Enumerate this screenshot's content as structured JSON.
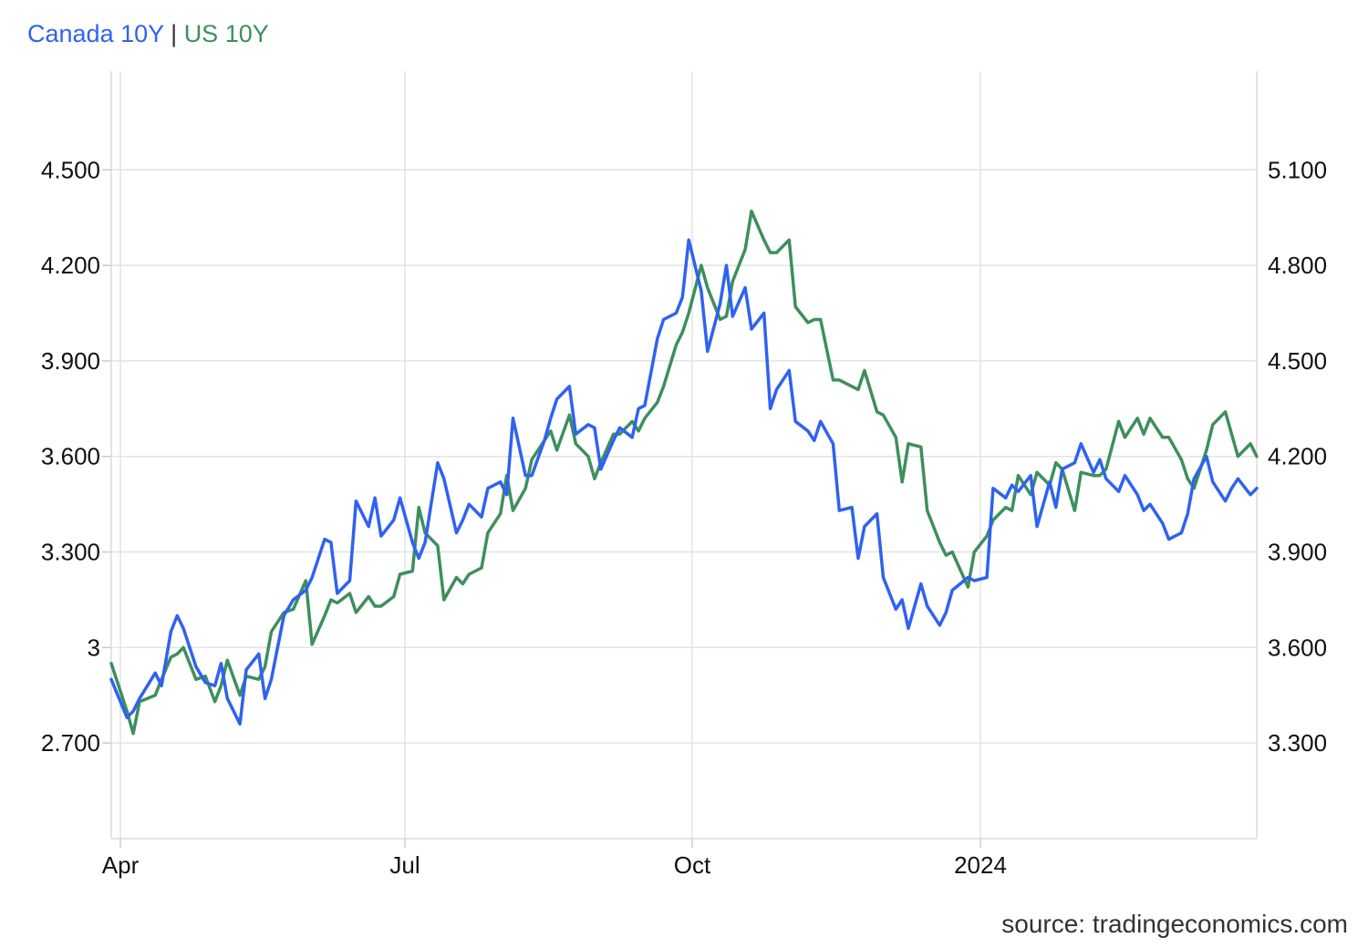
{
  "header": {
    "series1_label": "Canada 10Y",
    "separator": "|",
    "series2_label": "US 10Y"
  },
  "footer": {
    "source": "source: tradingeconomics.com"
  },
  "colors": {
    "canada": "#2f62f0",
    "us": "#3d8f5c",
    "grid": "#e3e3e3",
    "separator": "#333333"
  },
  "chart_data": {
    "type": "line",
    "x_tick_labels": [
      "Apr",
      "Jul",
      "Oct",
      "2024"
    ],
    "left_axis": {
      "ticks": [
        2.7,
        3.0,
        3.3,
        3.6,
        3.9,
        4.2,
        4.5
      ],
      "tick_labels": [
        "2.700",
        "3",
        "3.300",
        "3.600",
        "3.900",
        "4.200",
        "4.500"
      ],
      "range": [
        2.4,
        4.81
      ]
    },
    "right_axis": {
      "ticks": [
        3.3,
        3.6,
        3.9,
        4.2,
        4.5,
        4.8,
        5.1
      ],
      "tick_labels": [
        "3.300",
        "3.600",
        "3.900",
        "4.200",
        "4.500",
        "4.800",
        "5.100"
      ],
      "range": [
        3.0,
        5.41
      ]
    },
    "x_range": [
      "2023-03-29",
      "2024-03-28"
    ],
    "grid": true,
    "series": [
      {
        "name": "Canada 10Y",
        "axis": "left",
        "x": [
          "2023-03-29",
          "2023-04-03",
          "2023-04-05",
          "2023-04-07",
          "2023-04-12",
          "2023-04-14",
          "2023-04-17",
          "2023-04-19",
          "2023-04-21",
          "2023-04-25",
          "2023-04-28",
          "2023-05-01",
          "2023-05-03",
          "2023-05-05",
          "2023-05-09",
          "2023-05-11",
          "2023-05-15",
          "2023-05-17",
          "2023-05-19",
          "2023-05-23",
          "2023-05-26",
          "2023-05-30",
          "2023-06-01",
          "2023-06-05",
          "2023-06-07",
          "2023-06-09",
          "2023-06-13",
          "2023-06-15",
          "2023-06-19",
          "2023-06-21",
          "2023-06-23",
          "2023-06-27",
          "2023-06-29",
          "2023-07-03",
          "2023-07-05",
          "2023-07-07",
          "2023-07-11",
          "2023-07-13",
          "2023-07-17",
          "2023-07-19",
          "2023-07-21",
          "2023-07-25",
          "2023-07-27",
          "2023-07-31",
          "2023-08-02",
          "2023-08-04",
          "2023-08-08",
          "2023-08-10",
          "2023-08-14",
          "2023-08-16",
          "2023-08-18",
          "2023-08-22",
          "2023-08-24",
          "2023-08-28",
          "2023-08-30",
          "2023-09-01",
          "2023-09-05",
          "2023-09-07",
          "2023-09-11",
          "2023-09-13",
          "2023-09-15",
          "2023-09-19",
          "2023-09-21",
          "2023-09-25",
          "2023-09-27",
          "2023-09-29",
          "2023-10-03",
          "2023-10-05",
          "2023-10-09",
          "2023-10-11",
          "2023-10-13",
          "2023-10-17",
          "2023-10-19",
          "2023-10-23",
          "2023-10-25",
          "2023-10-27",
          "2023-10-31",
          "2023-11-02",
          "2023-11-06",
          "2023-11-08",
          "2023-11-10",
          "2023-11-14",
          "2023-11-16",
          "2023-11-20",
          "2023-11-22",
          "2023-11-24",
          "2023-11-28",
          "2023-11-30",
          "2023-12-04",
          "2023-12-06",
          "2023-12-08",
          "2023-12-12",
          "2023-12-14",
          "2023-12-18",
          "2023-12-20",
          "2023-12-22",
          "2023-12-27",
          "2023-12-29",
          "2024-01-02",
          "2024-01-04",
          "2024-01-08",
          "2024-01-10",
          "2024-01-12",
          "2024-01-16",
          "2024-01-18",
          "2024-01-22",
          "2024-01-24",
          "2024-01-26",
          "2024-01-30",
          "2024-02-01",
          "2024-02-05",
          "2024-02-07",
          "2024-02-09",
          "2024-02-13",
          "2024-02-15",
          "2024-02-19",
          "2024-02-21",
          "2024-02-23",
          "2024-02-27",
          "2024-02-29",
          "2024-03-04",
          "2024-03-06",
          "2024-03-08",
          "2024-03-12",
          "2024-03-14",
          "2024-03-18",
          "2024-03-20",
          "2024-03-22",
          "2024-03-26",
          "2024-03-28"
        ],
        "values": [
          2.9,
          2.78,
          2.8,
          2.84,
          2.92,
          2.88,
          3.05,
          3.1,
          3.06,
          2.94,
          2.89,
          2.88,
          2.95,
          2.84,
          2.76,
          2.93,
          2.98,
          2.84,
          2.9,
          3.1,
          3.15,
          3.18,
          3.22,
          3.34,
          3.33,
          3.17,
          3.21,
          3.46,
          3.38,
          3.47,
          3.35,
          3.4,
          3.47,
          3.33,
          3.28,
          3.33,
          3.58,
          3.53,
          3.36,
          3.4,
          3.45,
          3.41,
          3.5,
          3.52,
          3.48,
          3.72,
          3.54,
          3.54,
          3.65,
          3.72,
          3.78,
          3.82,
          3.67,
          3.7,
          3.69,
          3.56,
          3.65,
          3.69,
          3.66,
          3.75,
          3.76,
          3.97,
          4.03,
          4.05,
          4.1,
          4.28,
          4.12,
          3.93,
          4.08,
          4.2,
          4.04,
          4.13,
          4.0,
          4.05,
          3.75,
          3.81,
          3.87,
          3.71,
          3.68,
          3.65,
          3.71,
          3.64,
          3.43,
          3.44,
          3.28,
          3.38,
          3.42,
          3.22,
          3.12,
          3.15,
          3.06,
          3.2,
          3.13,
          3.07,
          3.11,
          3.18,
          3.22,
          3.21,
          3.22,
          3.5,
          3.47,
          3.51,
          3.49,
          3.54,
          3.38,
          3.52,
          3.44,
          3.56,
          3.58,
          3.64,
          3.55,
          3.59,
          3.53,
          3.49,
          3.54,
          3.48,
          3.43,
          3.45,
          3.39,
          3.34,
          3.36,
          3.42,
          3.53,
          3.6,
          3.52,
          3.46,
          3.5,
          3.53,
          3.48,
          3.5
        ]
      },
      {
        "name": "US 10Y",
        "axis": "right",
        "x": [
          "2023-03-29",
          "2023-04-03",
          "2023-04-05",
          "2023-04-07",
          "2023-04-12",
          "2023-04-14",
          "2023-04-17",
          "2023-04-19",
          "2023-04-21",
          "2023-04-25",
          "2023-04-28",
          "2023-05-01",
          "2023-05-03",
          "2023-05-05",
          "2023-05-09",
          "2023-05-11",
          "2023-05-15",
          "2023-05-17",
          "2023-05-19",
          "2023-05-23",
          "2023-05-26",
          "2023-05-30",
          "2023-06-01",
          "2023-06-05",
          "2023-06-07",
          "2023-06-09",
          "2023-06-13",
          "2023-06-15",
          "2023-06-19",
          "2023-06-21",
          "2023-06-23",
          "2023-06-27",
          "2023-06-29",
          "2023-07-03",
          "2023-07-05",
          "2023-07-07",
          "2023-07-11",
          "2023-07-13",
          "2023-07-17",
          "2023-07-19",
          "2023-07-21",
          "2023-07-25",
          "2023-07-27",
          "2023-07-31",
          "2023-08-02",
          "2023-08-04",
          "2023-08-08",
          "2023-08-10",
          "2023-08-14",
          "2023-08-16",
          "2023-08-18",
          "2023-08-22",
          "2023-08-24",
          "2023-08-28",
          "2023-08-30",
          "2023-09-01",
          "2023-09-05",
          "2023-09-07",
          "2023-09-11",
          "2023-09-13",
          "2023-09-15",
          "2023-09-19",
          "2023-09-21",
          "2023-09-25",
          "2023-09-27",
          "2023-09-29",
          "2023-10-03",
          "2023-10-05",
          "2023-10-09",
          "2023-10-11",
          "2023-10-13",
          "2023-10-17",
          "2023-10-19",
          "2023-10-23",
          "2023-10-25",
          "2023-10-27",
          "2023-10-31",
          "2023-11-02",
          "2023-11-06",
          "2023-11-08",
          "2023-11-10",
          "2023-11-14",
          "2023-11-16",
          "2023-11-20",
          "2023-11-22",
          "2023-11-24",
          "2023-11-28",
          "2023-11-30",
          "2023-12-04",
          "2023-12-06",
          "2023-12-08",
          "2023-12-12",
          "2023-12-14",
          "2023-12-18",
          "2023-12-20",
          "2023-12-22",
          "2023-12-27",
          "2023-12-29",
          "2024-01-02",
          "2024-01-04",
          "2024-01-08",
          "2024-01-10",
          "2024-01-12",
          "2024-01-16",
          "2024-01-18",
          "2024-01-22",
          "2024-01-24",
          "2024-01-26",
          "2024-01-30",
          "2024-02-01",
          "2024-02-05",
          "2024-02-07",
          "2024-02-09",
          "2024-02-13",
          "2024-02-15",
          "2024-02-19",
          "2024-02-21",
          "2024-02-23",
          "2024-02-27",
          "2024-02-29",
          "2024-03-04",
          "2024-03-06",
          "2024-03-08",
          "2024-03-12",
          "2024-03-14",
          "2024-03-18",
          "2024-03-20",
          "2024-03-22",
          "2024-03-26",
          "2024-03-28"
        ],
        "values": [
          3.55,
          3.4,
          3.33,
          3.43,
          3.45,
          3.5,
          3.57,
          3.58,
          3.6,
          3.5,
          3.51,
          3.43,
          3.48,
          3.56,
          3.45,
          3.51,
          3.5,
          3.54,
          3.65,
          3.71,
          3.72,
          3.81,
          3.61,
          3.7,
          3.75,
          3.74,
          3.77,
          3.71,
          3.76,
          3.73,
          3.73,
          3.76,
          3.83,
          3.84,
          4.04,
          3.96,
          3.92,
          3.75,
          3.82,
          3.8,
          3.83,
          3.85,
          3.96,
          4.02,
          4.14,
          4.03,
          4.1,
          4.19,
          4.25,
          4.28,
          4.22,
          4.33,
          4.24,
          4.2,
          4.13,
          4.18,
          4.27,
          4.27,
          4.31,
          4.28,
          4.32,
          4.37,
          4.42,
          4.55,
          4.59,
          4.65,
          4.8,
          4.73,
          4.63,
          4.64,
          4.75,
          4.85,
          4.97,
          4.88,
          4.84,
          4.84,
          4.88,
          4.67,
          4.62,
          4.63,
          4.63,
          4.44,
          4.44,
          4.42,
          4.41,
          4.47,
          4.34,
          4.33,
          4.26,
          4.12,
          4.24,
          4.23,
          4.03,
          3.93,
          3.89,
          3.9,
          3.79,
          3.9,
          3.95,
          4.0,
          4.04,
          4.03,
          4.14,
          4.08,
          4.15,
          4.11,
          4.18,
          4.16,
          4.03,
          4.15,
          4.14,
          4.14,
          4.16,
          4.31,
          4.26,
          4.32,
          4.27,
          4.32,
          4.26,
          4.26,
          4.19,
          4.13,
          4.1,
          4.22,
          4.3,
          4.34,
          4.27,
          4.2,
          4.24,
          4.2
        ]
      }
    ]
  }
}
